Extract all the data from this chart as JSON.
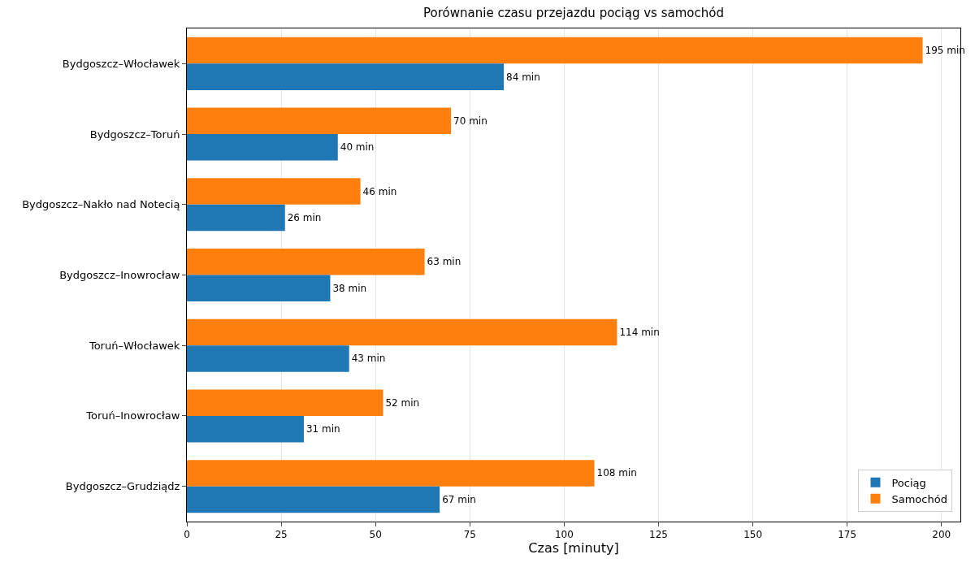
{
  "chart_data": {
    "type": "bar",
    "orientation": "horizontal",
    "title": "Porównanie czasu przejazdu pociąg vs samochód",
    "xlabel": "Czas [minuty]",
    "categories": [
      "Bydgoszcz–Włocławek",
      "Bydgoszcz–Toruń",
      "Bydgoszcz–Nakło nad Notecią",
      "Bydgoszcz–Inowrocław",
      "Toruń–Włocławek",
      "Toruń–Inowrocław",
      "Bydgoszcz–Grudziądz"
    ],
    "series": [
      {
        "name": "Pociąg",
        "color": "#1f77b4",
        "values": [
          84,
          40,
          26,
          38,
          43,
          31,
          67
        ],
        "value_labels": [
          "84 min",
          "40 min",
          "26 min",
          "38 min",
          "43 min",
          "31 min",
          "67 min"
        ]
      },
      {
        "name": "Samochód",
        "color": "#ff7f0e",
        "values": [
          195,
          70,
          46,
          63,
          114,
          52,
          108
        ],
        "value_labels": [
          "195 min",
          "70 min",
          "46 min",
          "63 min",
          "114 min",
          "52 min",
          "108 min"
        ]
      }
    ],
    "xlim": [
      0,
      205
    ],
    "xticks": [
      0,
      25,
      50,
      75,
      100,
      125,
      150,
      175,
      200
    ],
    "grid": "x",
    "legend": "bottom right"
  }
}
